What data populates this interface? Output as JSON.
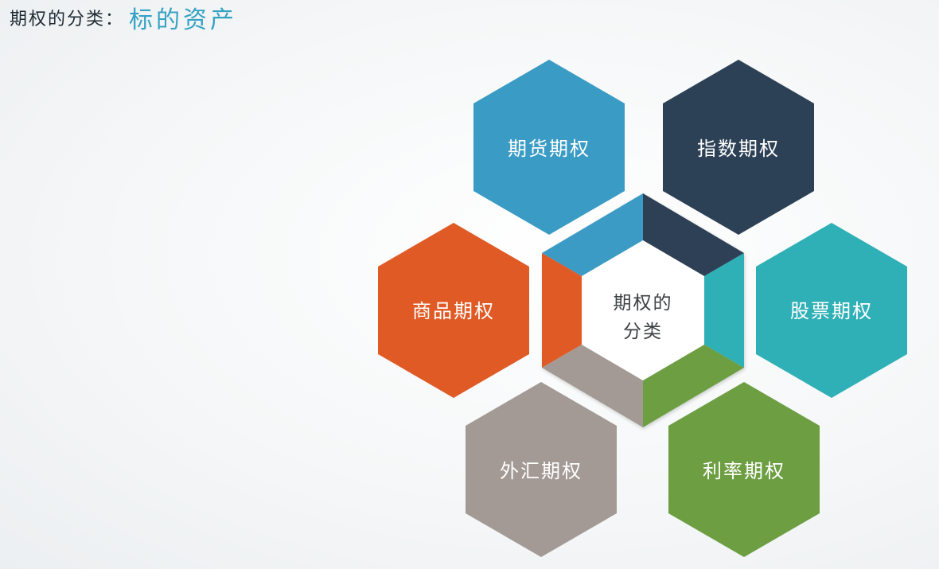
{
  "header": {
    "prefix": "期权的分类：",
    "title": "标的资产"
  },
  "center": {
    "line1": "期权的",
    "line2": "分类"
  },
  "hexagons": [
    {
      "label": "期货期权",
      "color": "#3a9bc4"
    },
    {
      "label": "指数期权",
      "color": "#2d4156"
    },
    {
      "label": "股票期权",
      "color": "#2fb0b6"
    },
    {
      "label": "利率期权",
      "color": "#6d9e42"
    },
    {
      "label": "外汇期权",
      "color": "#a39a95"
    },
    {
      "label": "商品期权",
      "color": "#e05a26"
    }
  ]
}
